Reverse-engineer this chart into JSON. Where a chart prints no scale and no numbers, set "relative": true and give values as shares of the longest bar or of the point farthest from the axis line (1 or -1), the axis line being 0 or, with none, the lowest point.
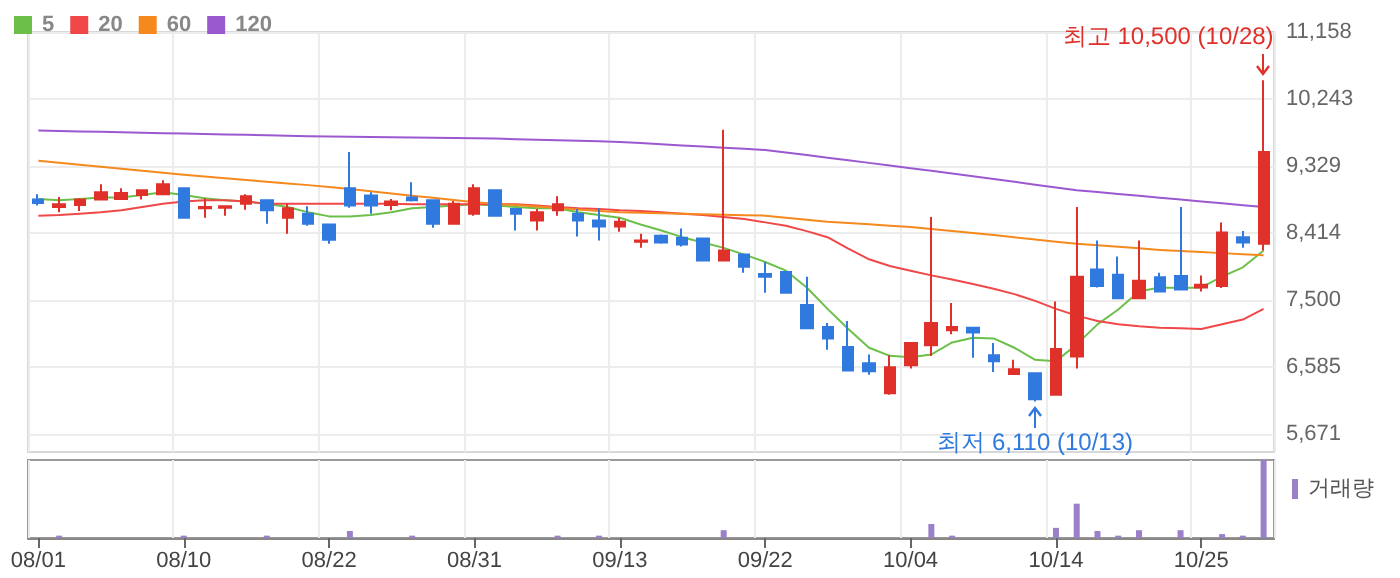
{
  "chart_data": [
    {
      "type": "candlestick",
      "categories": [
        null,
        null,
        null,
        null,
        null,
        null,
        null,
        null,
        null,
        null,
        null,
        null,
        null,
        null,
        null,
        null,
        null,
        null,
        null,
        null,
        null,
        null,
        null,
        null,
        null,
        null,
        null,
        null,
        null,
        null,
        null,
        null,
        null,
        null,
        null,
        null,
        null,
        null,
        null,
        null,
        null,
        null,
        null,
        null,
        null,
        null,
        null,
        null,
        null,
        null,
        null,
        null,
        null,
        null,
        null,
        null,
        null,
        null,
        null,
        null
      ],
      "ohlc": [
        [
          8868,
          8941,
          8786,
          8822
        ],
        [
          8767,
          8905,
          8694,
          8804
        ],
        [
          8795,
          8887,
          8713,
          8868
        ],
        [
          8868,
          9079,
          8868,
          8969
        ],
        [
          8877,
          9024,
          8877,
          8960
        ],
        [
          8932,
          8996,
          8868,
          8996
        ],
        [
          8941,
          9134,
          8941,
          9079
        ],
        [
          9024,
          9024,
          8621,
          8621
        ],
        [
          8749,
          8887,
          8621,
          8767
        ],
        [
          8758,
          8777,
          8649,
          8777
        ],
        [
          8813,
          8941,
          8731,
          8914
        ],
        [
          8859,
          8859,
          8539,
          8722
        ],
        [
          8621,
          8813,
          8401,
          8749
        ],
        [
          8676,
          8777,
          8511,
          8539
        ],
        [
          8529,
          8529,
          8264,
          8319
        ],
        [
          9024,
          9518,
          8758,
          8786
        ],
        [
          8923,
          8969,
          8676,
          8786
        ],
        [
          8795,
          8877,
          8722,
          8841
        ],
        [
          8896,
          9106,
          8841,
          8859
        ],
        [
          8859,
          8859,
          8484,
          8539
        ],
        [
          8539,
          8850,
          8539,
          8813
        ],
        [
          8676,
          9079,
          8648,
          9024
        ],
        [
          8996,
          8996,
          8648,
          8648
        ],
        [
          8740,
          8740,
          8447,
          8676
        ],
        [
          8584,
          8740,
          8447,
          8694
        ],
        [
          8722,
          8914,
          8648,
          8804
        ],
        [
          8676,
          8740,
          8364,
          8584
        ],
        [
          8584,
          8749,
          8310,
          8502
        ],
        [
          8502,
          8621,
          8429,
          8566
        ],
        [
          8291,
          8401,
          8209,
          8310
        ],
        [
          8374,
          8392,
          8264,
          8282
        ],
        [
          8346,
          8474,
          8227,
          8255
        ],
        [
          8337,
          8337,
          8035,
          8035
        ],
        [
          8035,
          9821,
          8035,
          8172
        ],
        [
          8117,
          8117,
          7870,
          7952
        ],
        [
          7851,
          8016,
          7595,
          7815
        ],
        [
          7879,
          7879,
          7595,
          7595
        ],
        [
          7430,
          7815,
          7109,
          7109
        ],
        [
          7128,
          7183,
          6816,
          6972
        ],
        [
          6853,
          7210,
          6532,
          6532
        ],
        [
          6633,
          6752,
          6477,
          6523
        ],
        [
          6221,
          6743,
          6203,
          6578
        ],
        [
          6606,
          6908,
          6560,
          6908
        ],
        [
          6880,
          8630,
          6733,
          7183
        ],
        [
          7084,
          7457,
          7027,
          7128
        ],
        [
          7119,
          7119,
          6706,
          7054
        ],
        [
          6743,
          6908,
          6514,
          6660
        ],
        [
          6487,
          6679,
          6487,
          6551
        ],
        [
          6496,
          6496,
          6110,
          6140
        ],
        [
          6203,
          7476,
          6203,
          6826
        ],
        [
          6725,
          8768,
          6560,
          7815
        ],
        [
          7915,
          8310,
          7668,
          7687
        ],
        [
          7842,
          8090,
          7522,
          7522
        ],
        [
          7522,
          8310,
          7522,
          7760
        ],
        [
          7806,
          7870,
          7613,
          7613
        ],
        [
          7824,
          8768,
          7641,
          7641
        ],
        [
          7668,
          7833,
          7613,
          7705
        ],
        [
          7687,
          8557,
          7659,
          8419
        ],
        [
          8355,
          8438,
          8209,
          8282
        ],
        [
          8264,
          10500,
          8172,
          9519
        ]
      ],
      "colors": [
        "#2f79df",
        "#e0302a",
        "#e0302a",
        "#e0302a",
        "#e0302a",
        "#e0302a",
        "#e0302a",
        "#2f79df",
        "#e0302a",
        "#e0302a",
        "#e0302a",
        "#2f79df",
        "#e0302a",
        "#2f79df",
        "#2f79df",
        "#2f79df",
        "#2f79df",
        "#e0302a",
        "#2f79df",
        "#2f79df",
        "#e0302a",
        "#e0302a",
        "#2f79df",
        "#2f79df",
        "#e0302a",
        "#e0302a",
        "#2f79df",
        "#2f79df",
        "#e0302a",
        "#e0302a",
        "#2f79df",
        "#2f79df",
        "#2f79df",
        "#e0302a",
        "#2f79df",
        "#2f79df",
        "#2f79df",
        "#2f79df",
        "#2f79df",
        "#2f79df",
        "#2f79df",
        "#e0302a",
        "#e0302a",
        "#e0302a",
        "#e0302a",
        "#2f79df",
        "#2f79df",
        "#e0302a",
        "#2f79df",
        "#e0302a",
        "#e0302a",
        "#2f79df",
        "#2f79df",
        "#e0302a",
        "#2f79df",
        "#2f79df",
        "#e0302a",
        "#e0302a",
        "#2f79df",
        "#e0302a"
      ],
      "series": [
        {
          "type": "line",
          "name": "5",
          "color": "#6cc04a",
          "values": [
            8877,
            8859,
            8877,
            8896,
            8896,
            8932,
            8969,
            8932,
            8886,
            8859,
            8841,
            8813,
            8767,
            8694,
            8639,
            8639,
            8657,
            8694,
            8749,
            8767,
            8786,
            8804,
            8786,
            8767,
            8749,
            8749,
            8694,
            8657,
            8621,
            8529,
            8447,
            8355,
            8282,
            8209,
            8117,
            8016,
            7897,
            7668,
            7375,
            7100,
            6844,
            6734,
            6716,
            6752,
            6917,
            6981,
            6972,
            6844,
            6679,
            6661,
            6890,
            7164,
            7366,
            7613,
            7668,
            7659,
            7668,
            7815,
            7943,
            8172
          ]
        },
        {
          "type": "line",
          "name": "20",
          "color": "#f04848",
          "values": [
            8648,
            8657,
            8676,
            8694,
            8722,
            8767,
            8813,
            8841,
            8859,
            8859,
            8841,
            8813,
            8813,
            8813,
            8813,
            8813,
            8813,
            8813,
            8804,
            8804,
            8804,
            8804,
            8804,
            8804,
            8786,
            8767,
            8749,
            8740,
            8722,
            8712,
            8694,
            8676,
            8657,
            8630,
            8603,
            8557,
            8511,
            8438,
            8355,
            8199,
            8053,
            7961,
            7897,
            7833,
            7778,
            7714,
            7650,
            7577,
            7485,
            7375,
            7283,
            7210,
            7164,
            7137,
            7119,
            7109,
            7100,
            7164,
            7229,
            7375
          ]
        },
        {
          "type": "line",
          "name": "60",
          "color": "#f5891e",
          "values": [
            9399,
            9372,
            9344,
            9317,
            9289,
            9262,
            9234,
            9207,
            9183,
            9160,
            9136,
            9113,
            9089,
            9066,
            9042,
            9012,
            8982,
            8952,
            8922,
            8892,
            8862,
            8832,
            8812,
            8793,
            8773,
            8753,
            8734,
            8714,
            8694,
            8688,
            8681,
            8675,
            8668,
            8662,
            8655,
            8649,
            8621,
            8594,
            8566,
            8548,
            8530,
            8511,
            8493,
            8466,
            8438,
            8411,
            8383,
            8353,
            8323,
            8294,
            8264,
            8243,
            8223,
            8202,
            8181,
            8166,
            8152,
            8137,
            8123,
            8108
          ]
        },
        {
          "type": "line",
          "name": "120",
          "color": "#9b59d0",
          "values": [
            9812,
            9806,
            9800,
            9794,
            9788,
            9782,
            9776,
            9771,
            9765,
            9759,
            9753,
            9747,
            9741,
            9735,
            9729,
            9726,
            9722,
            9719,
            9716,
            9712,
            9709,
            9706,
            9702,
            9694,
            9687,
            9679,
            9671,
            9664,
            9656,
            9640,
            9625,
            9609,
            9593,
            9577,
            9562,
            9546,
            9511,
            9476,
            9441,
            9405,
            9370,
            9335,
            9298,
            9262,
            9225,
            9187,
            9149,
            9111,
            9072,
            9034,
            8996,
            8971,
            8945,
            8920,
            8894,
            8869,
            8843,
            8818,
            8792,
            8767
          ]
        }
      ],
      "ylim": [
        5420,
        11158
      ],
      "yticks": [
        {
          "value": 5671,
          "label": "5,671"
        },
        {
          "value": 6585,
          "label": "6,585"
        },
        {
          "value": 7500,
          "label": "7,500"
        },
        {
          "value": 8414,
          "label": "8,414"
        },
        {
          "value": 9329,
          "label": "9,329"
        },
        {
          "value": 10243,
          "label": "10,243"
        },
        {
          "value": 11158,
          "label": "11,158"
        }
      ],
      "annotations": [
        "최고 10,500 (10/28)",
        "최저 6,110 (10/13)"
      ],
      "grid": true,
      "legend": "top left",
      "tick_labels": "y"
    },
    {
      "type": "bar",
      "relative": true,
      "categories": [
        "08/01",
        null,
        null,
        null,
        null,
        null,
        null,
        "08/10",
        null,
        null,
        null,
        null,
        null,
        null,
        "08/22",
        null,
        null,
        null,
        null,
        null,
        null,
        "08/31",
        null,
        null,
        null,
        null,
        null,
        null,
        "09/13",
        null,
        null,
        null,
        null,
        null,
        null,
        "09/22",
        null,
        null,
        null,
        null,
        null,
        null,
        "10/04",
        null,
        null,
        null,
        null,
        null,
        null,
        "10/14",
        null,
        null,
        null,
        null,
        null,
        null,
        "10/25",
        null,
        null,
        null
      ],
      "series": [
        {
          "name": "거래량",
          "color": "#9a80c8",
          "values": [
            null,
            0.03,
            null,
            null,
            null,
            null,
            null,
            0.03,
            null,
            null,
            null,
            0.03,
            null,
            null,
            null,
            0.09,
            null,
            null,
            0.03,
            null,
            null,
            null,
            null,
            null,
            null,
            0.03,
            null,
            0.03,
            null,
            null,
            null,
            null,
            null,
            0.1,
            null,
            null,
            null,
            null,
            null,
            null,
            null,
            null,
            null,
            0.18,
            0.03,
            null,
            null,
            null,
            null,
            0.13,
            0.44,
            0.09,
            0.03,
            0.1,
            null,
            0.1,
            null,
            0.05,
            0.03,
            1
          ]
        }
      ],
      "grid": "x",
      "legend": "top right",
      "tick_labels": "x"
    }
  ]
}
